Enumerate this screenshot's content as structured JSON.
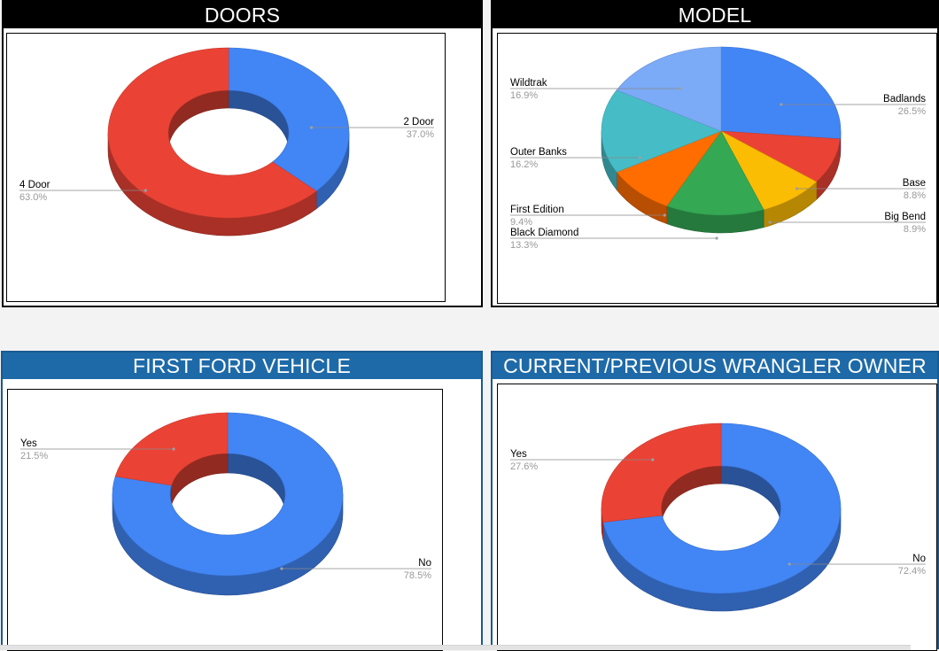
{
  "panels": {
    "doors": {
      "title": "DOORS"
    },
    "model": {
      "title": "MODEL"
    },
    "first_ford": {
      "title": "FIRST FORD VEHICLE"
    },
    "wrangler": {
      "title": "CURRENT/PREVIOUS WRANGLER OWNER"
    }
  },
  "chart_data": [
    {
      "id": "doors",
      "type": "pie",
      "variant": "3d-donut",
      "title": "DOORS",
      "slices": [
        {
          "label": "2 Door",
          "value": 37.0,
          "display": "37.0%",
          "color": "#4285f4",
          "side": "right"
        },
        {
          "label": "4 Door",
          "value": 63.0,
          "display": "63.0%",
          "color": "#ea4335",
          "side": "left"
        }
      ]
    },
    {
      "id": "model",
      "type": "pie",
      "variant": "3d-pie",
      "title": "MODEL",
      "slices": [
        {
          "label": "Badlands",
          "value": 26.5,
          "display": "26.5%",
          "color": "#4285f4",
          "side": "right"
        },
        {
          "label": "Base",
          "value": 8.8,
          "display": "8.8%",
          "color": "#ea4335",
          "side": "right"
        },
        {
          "label": "Big Bend",
          "value": 8.9,
          "display": "8.9%",
          "color": "#fbbc04",
          "side": "right"
        },
        {
          "label": "Black Diamond",
          "value": 13.3,
          "display": "13.3%",
          "color": "#34a853",
          "side": "left"
        },
        {
          "label": "First Edition",
          "value": 9.4,
          "display": "9.4%",
          "color": "#ff6d01",
          "side": "left"
        },
        {
          "label": "Outer Banks",
          "value": 16.2,
          "display": "16.2%",
          "color": "#46bdc6",
          "side": "left"
        },
        {
          "label": "Wildtrak",
          "value": 16.9,
          "display": "16.9%",
          "color": "#7baaf7",
          "side": "left"
        }
      ]
    },
    {
      "id": "first_ford",
      "type": "pie",
      "variant": "3d-donut",
      "title": "FIRST FORD VEHICLE",
      "slices": [
        {
          "label": "No",
          "value": 78.5,
          "display": "78.5%",
          "color": "#4285f4",
          "side": "right"
        },
        {
          "label": "Yes",
          "value": 21.5,
          "display": "21.5%",
          "color": "#ea4335",
          "side": "left"
        }
      ]
    },
    {
      "id": "wrangler",
      "type": "pie",
      "variant": "3d-donut",
      "title": "CURRENT/PREVIOUS WRANGLER OWNER",
      "slices": [
        {
          "label": "No",
          "value": 72.4,
          "display": "72.4%",
          "color": "#4285f4",
          "side": "right"
        },
        {
          "label": "Yes",
          "value": 27.6,
          "display": "27.6%",
          "color": "#ea4335",
          "side": "left"
        }
      ]
    }
  ]
}
